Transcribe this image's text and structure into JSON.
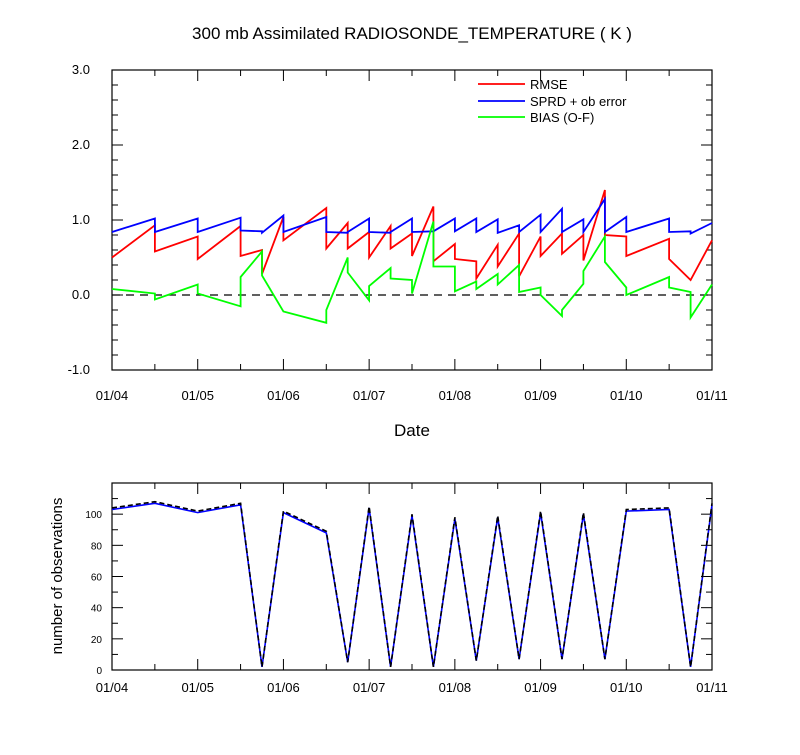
{
  "chart_data": [
    {
      "type": "line",
      "title": "300 mb Assimilated RADIOSONDE_TEMPERATURE ( K )",
      "xlabel": "Date",
      "ylabel": "",
      "x_ticks": [
        "01/04",
        "01/05",
        "01/06",
        "01/07",
        "01/08",
        "01/09",
        "01/10",
        "01/11"
      ],
      "ylim": [
        -1.0,
        3.0
      ],
      "y_ticks": [
        "-1.0",
        "0.0",
        "1.0",
        "2.0",
        "3.0"
      ],
      "legend_position": "top-right",
      "reference_line": {
        "y": 0,
        "style": "dashed"
      },
      "series": [
        {
          "name": "RMSE",
          "color": "#ff0000",
          "x": [
            "01/04 00Z",
            "01/04 12Z",
            "01/04 12Z",
            "01/05 00Z",
            "01/05 00Z",
            "01/05 12Z",
            "01/05 12Z",
            "01/05 18Z",
            "01/05 18Z",
            "01/06 00Z",
            "01/06 00Z",
            "01/06 12Z",
            "01/06 12Z",
            "01/06 18Z",
            "01/06 18Z",
            "01/07 00Z",
            "01/07 00Z",
            "01/07 06Z",
            "01/07 06Z",
            "01/07 12Z",
            "01/07 12Z",
            "01/07 18Z",
            "01/07 18Z",
            "01/08 00Z",
            "01/08 00Z",
            "01/08 06Z",
            "01/08 06Z",
            "01/08 12Z",
            "01/08 12Z",
            "01/08 18Z",
            "01/08 18Z",
            "01/09 00Z",
            "01/09 00Z",
            "01/09 06Z",
            "01/09 06Z",
            "01/09 12Z",
            "01/09 12Z",
            "01/09 18Z",
            "01/09 18Z",
            "01/10 00Z",
            "01/10 00Z",
            "01/10 12Z",
            "01/10 12Z",
            "01/10 18Z",
            "01/11 00Z"
          ],
          "y": [
            0.5,
            0.93,
            0.58,
            0.78,
            0.48,
            0.92,
            0.52,
            0.6,
            0.28,
            1.04,
            0.73,
            1.16,
            0.62,
            0.96,
            0.62,
            0.84,
            0.5,
            0.92,
            0.62,
            0.82,
            0.52,
            1.18,
            0.45,
            0.68,
            0.48,
            0.45,
            0.22,
            0.67,
            0.38,
            0.82,
            0.25,
            0.78,
            0.52,
            0.82,
            0.55,
            0.8,
            0.46,
            1.4,
            0.8,
            0.78,
            0.52,
            0.75,
            0.48,
            0.2,
            0.73
          ]
        },
        {
          "name": "SPRD + ob error",
          "color": "#0000ff",
          "x": [
            "01/04 00Z",
            "01/04 12Z",
            "01/04 12Z",
            "01/05 00Z",
            "01/05 00Z",
            "01/05 12Z",
            "01/05 12Z",
            "01/05 18Z",
            "01/05 18Z",
            "01/06 00Z",
            "01/06 00Z",
            "01/06 12Z",
            "01/06 12Z",
            "01/06 18Z",
            "01/06 18Z",
            "01/07 00Z",
            "01/07 00Z",
            "01/07 06Z",
            "01/07 06Z",
            "01/07 12Z",
            "01/07 12Z",
            "01/07 18Z",
            "01/07 18Z",
            "01/08 00Z",
            "01/08 00Z",
            "01/08 06Z",
            "01/08 06Z",
            "01/08 12Z",
            "01/08 12Z",
            "01/08 18Z",
            "01/08 18Z",
            "01/09 00Z",
            "01/09 00Z",
            "01/09 06Z",
            "01/09 06Z",
            "01/09 12Z",
            "01/09 12Z",
            "01/09 18Z",
            "01/09 18Z",
            "01/10 00Z",
            "01/10 00Z",
            "01/10 12Z",
            "01/10 12Z",
            "01/10 18Z",
            "01/10 18Z",
            "01/11 00Z"
          ],
          "y": [
            0.84,
            1.02,
            0.84,
            1.02,
            0.84,
            1.03,
            0.86,
            0.85,
            0.83,
            1.06,
            0.84,
            1.04,
            0.84,
            0.83,
            0.84,
            1.02,
            0.84,
            0.83,
            0.84,
            1.02,
            0.84,
            0.85,
            0.85,
            1.02,
            0.85,
            1.02,
            0.84,
            1.01,
            0.83,
            0.93,
            0.84,
            1.07,
            0.84,
            1.15,
            0.84,
            1.01,
            0.84,
            1.28,
            0.84,
            1.04,
            0.84,
            1.02,
            0.84,
            0.85,
            0.82,
            0.96
          ]
        },
        {
          "name": "BIAS (O-F)",
          "color": "#00ff00",
          "x": [
            "01/04 00Z",
            "01/04 12Z",
            "01/04 12Z",
            "01/05 00Z",
            "01/05 00Z",
            "01/05 12Z",
            "01/05 12Z",
            "01/05 18Z",
            "01/05 18Z",
            "01/06 00Z",
            "01/06 00Z",
            "01/06 12Z",
            "01/06 12Z",
            "01/06 18Z",
            "01/06 18Z",
            "01/07 00Z",
            "01/07 00Z",
            "01/07 06Z",
            "01/07 06Z",
            "01/07 12Z",
            "01/07 12Z",
            "01/07 18Z",
            "01/07 18Z",
            "01/08 00Z",
            "01/08 00Z",
            "01/08 06Z",
            "01/08 06Z",
            "01/08 12Z",
            "01/08 12Z",
            "01/08 18Z",
            "01/08 18Z",
            "01/09 00Z",
            "01/09 00Z",
            "01/09 06Z",
            "01/09 06Z",
            "01/09 12Z",
            "01/09 12Z",
            "01/09 18Z",
            "01/09 18Z",
            "01/10 00Z",
            "01/10 00Z",
            "01/10 12Z",
            "01/10 12Z",
            "01/10 18Z",
            "01/10 18Z",
            "01/11 00Z"
          ],
          "y": [
            0.08,
            0.02,
            -0.06,
            0.14,
            0.02,
            -0.15,
            0.24,
            0.58,
            0.26,
            -0.22,
            -0.22,
            -0.37,
            -0.2,
            0.5,
            0.3,
            -0.07,
            0.12,
            0.36,
            0.22,
            0.2,
            0.02,
            0.98,
            0.38,
            0.38,
            0.05,
            0.18,
            0.08,
            0.28,
            0.14,
            0.4,
            0.04,
            0.1,
            0.0,
            -0.28,
            -0.2,
            0.15,
            0.32,
            0.78,
            0.44,
            0.1,
            0.0,
            0.24,
            0.1,
            0.04,
            -0.3,
            0.14
          ]
        }
      ]
    },
    {
      "type": "line",
      "title": "",
      "xlabel": "",
      "ylabel": "number of observations",
      "x_ticks": [
        "01/04",
        "01/05",
        "01/06",
        "01/07",
        "01/08",
        "01/09",
        "01/10",
        "01/11"
      ],
      "ylim": [
        0,
        120
      ],
      "y_ticks": [
        "0",
        "20",
        "40",
        "60",
        "80",
        "100"
      ],
      "series": [
        {
          "color": "#0000ff",
          "style": "solid",
          "x": [
            "01/04 00Z",
            "01/04 12Z",
            "01/05 00Z",
            "01/05 12Z",
            "01/05 18Z",
            "01/06 00Z",
            "01/06 12Z",
            "01/06 18Z",
            "01/07 00Z",
            "01/07 06Z",
            "01/07 12Z",
            "01/07 18Z",
            "01/08 00Z",
            "01/08 06Z",
            "01/08 12Z",
            "01/08 18Z",
            "01/09 00Z",
            "01/09 06Z",
            "01/09 12Z",
            "01/09 18Z",
            "01/10 00Z",
            "01/10 12Z",
            "01/10 18Z",
            "01/11 00Z"
          ],
          "y": [
            103,
            107,
            101,
            106,
            2,
            101,
            88,
            5,
            104,
            2,
            99,
            2,
            97,
            6,
            98,
            7,
            101,
            7,
            100,
            7,
            102,
            103,
            2,
            106
          ]
        },
        {
          "color": "#000000",
          "style": "dashed",
          "x": [
            "01/04 00Z",
            "01/04 12Z",
            "01/05 00Z",
            "01/05 12Z",
            "01/05 18Z",
            "01/06 00Z",
            "01/06 12Z",
            "01/06 18Z",
            "01/07 00Z",
            "01/07 06Z",
            "01/07 12Z",
            "01/07 18Z",
            "01/08 00Z",
            "01/08 06Z",
            "01/08 12Z",
            "01/08 18Z",
            "01/09 00Z",
            "01/09 06Z",
            "01/09 12Z",
            "01/09 18Z",
            "01/10 00Z",
            "01/10 12Z",
            "01/10 18Z",
            "01/11 00Z"
          ],
          "y": [
            104,
            108,
            102,
            107,
            2,
            102,
            89,
            5,
            105,
            2,
            100,
            2,
            98,
            6,
            99,
            7,
            102,
            7,
            101,
            7,
            103,
            104,
            2,
            107
          ]
        }
      ]
    }
  ]
}
